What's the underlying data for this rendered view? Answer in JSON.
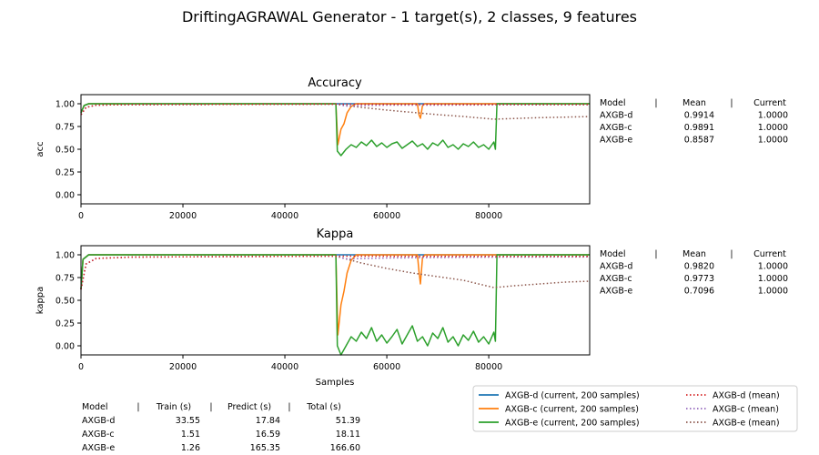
{
  "figure_title": "DriftingAGRAWAL Generator - 1 target(s), 2 classes, 9 features",
  "chart_data": [
    {
      "type": "line",
      "title": "Accuracy",
      "xlabel": "",
      "ylabel": "acc",
      "xlim": [
        0,
        99800
      ],
      "ylim": [
        -0.1,
        1.1
      ],
      "xticks": [
        "0",
        "20000",
        "40000",
        "60000",
        "80000"
      ],
      "yticks": [
        "0.00",
        "0.25",
        "0.50",
        "0.75",
        "1.00"
      ],
      "grid": false,
      "series": [
        {
          "name": "AXGB-d  (current, 200 samples)",
          "color": "#1f77b4",
          "style": "solid",
          "x": [
            0,
            600,
            1500,
            50000,
            99800
          ],
          "y": [
            0.9,
            0.98,
            1.0,
            1.0,
            1.0
          ]
        },
        {
          "name": "AXGB-c  (current, 200 samples)",
          "color": "#ff7f0e",
          "style": "solid",
          "x": [
            0,
            600,
            1500,
            50000,
            50400,
            51000,
            51600,
            52200,
            53000,
            54000,
            66000,
            66300,
            66600,
            67000,
            67500,
            99800
          ],
          "y": [
            0.9,
            0.98,
            1.0,
            1.0,
            0.55,
            0.72,
            0.78,
            0.9,
            0.97,
            1.0,
            1.0,
            0.88,
            0.84,
            0.98,
            1.0,
            1.0
          ]
        },
        {
          "name": "AXGB-e  (current, 200 samples)",
          "color": "#2ca02c",
          "style": "solid",
          "x": [
            0,
            600,
            1500,
            50000,
            50300,
            51000,
            52000,
            53000,
            54000,
            55000,
            56000,
            57000,
            58000,
            59000,
            60000,
            61000,
            62000,
            63000,
            64000,
            65000,
            66000,
            67000,
            68000,
            69000,
            70000,
            71000,
            72000,
            73000,
            74000,
            75000,
            76000,
            77000,
            78000,
            79000,
            80000,
            81000,
            81300,
            81600,
            99800
          ],
          "y": [
            0.9,
            0.98,
            1.0,
            1.0,
            0.48,
            0.43,
            0.5,
            0.55,
            0.52,
            0.58,
            0.54,
            0.6,
            0.53,
            0.57,
            0.52,
            0.56,
            0.58,
            0.51,
            0.55,
            0.59,
            0.53,
            0.56,
            0.5,
            0.57,
            0.54,
            0.6,
            0.52,
            0.55,
            0.5,
            0.56,
            0.53,
            0.58,
            0.52,
            0.55,
            0.5,
            0.58,
            0.5,
            1.0,
            1.0
          ]
        },
        {
          "name": "AXGB-d (mean)",
          "color": "#d62728",
          "style": "dotted",
          "x": [
            0,
            1000,
            3000,
            10000,
            50000,
            99800
          ],
          "y": [
            0.88,
            0.96,
            0.985,
            0.99,
            0.995,
            0.991
          ]
        },
        {
          "name": "AXGB-c (mean)",
          "color": "#9467bd",
          "style": "dotted",
          "x": [
            0,
            1000,
            3000,
            10000,
            50000,
            52000,
            60000,
            70000,
            80000,
            99800
          ],
          "y": [
            0.88,
            0.96,
            0.985,
            0.99,
            0.995,
            0.975,
            0.985,
            0.985,
            0.987,
            0.989
          ]
        },
        {
          "name": "AXGB-e (mean)",
          "color": "#8c564b",
          "style": "dotted",
          "x": [
            0,
            1000,
            3000,
            10000,
            50000,
            55000,
            60000,
            65000,
            70000,
            75000,
            81000,
            85000,
            90000,
            95000,
            99800
          ],
          "y": [
            0.88,
            0.96,
            0.985,
            0.99,
            0.995,
            0.96,
            0.93,
            0.905,
            0.88,
            0.86,
            0.83,
            0.838,
            0.847,
            0.853,
            0.859
          ]
        }
      ],
      "side_table": {
        "header": [
          "Model",
          "|",
          "Mean",
          "|",
          "Current"
        ],
        "rows": [
          [
            "AXGB-d",
            "0.9914",
            "1.0000"
          ],
          [
            "AXGB-c",
            "0.9891",
            "1.0000"
          ],
          [
            "AXGB-e",
            "0.8587",
            "1.0000"
          ]
        ]
      }
    },
    {
      "type": "line",
      "title": "Kappa",
      "xlabel": "Samples",
      "ylabel": "kappa",
      "xlim": [
        0,
        99800
      ],
      "ylim": [
        -0.1,
        1.1
      ],
      "xticks": [
        "0",
        "20000",
        "40000",
        "60000",
        "80000"
      ],
      "yticks": [
        "0.00",
        "0.25",
        "0.50",
        "0.75",
        "1.00"
      ],
      "grid": false,
      "series": [
        {
          "name": "AXGB-d  (current, 200 samples)",
          "color": "#1f77b4",
          "style": "solid",
          "x": [
            0,
            400,
            1500,
            50000,
            99800
          ],
          "y": [
            0.62,
            0.95,
            1.0,
            1.0,
            1.0
          ]
        },
        {
          "name": "AXGB-c  (current, 200 samples)",
          "color": "#ff7f0e",
          "style": "solid",
          "x": [
            0,
            400,
            1500,
            50000,
            50400,
            51000,
            51600,
            52200,
            53000,
            54000,
            66000,
            66300,
            66600,
            67000,
            67500,
            99800
          ],
          "y": [
            0.62,
            0.95,
            1.0,
            1.0,
            0.12,
            0.45,
            0.6,
            0.8,
            0.94,
            1.0,
            1.0,
            0.82,
            0.68,
            0.97,
            1.0,
            1.0
          ]
        },
        {
          "name": "AXGB-e  (current, 200 samples)",
          "color": "#2ca02c",
          "style": "solid",
          "x": [
            0,
            400,
            1500,
            50000,
            50300,
            51000,
            52000,
            53000,
            54000,
            55000,
            56000,
            57000,
            58000,
            59000,
            60000,
            61000,
            62000,
            63000,
            64000,
            65000,
            66000,
            67000,
            68000,
            69000,
            70000,
            71000,
            72000,
            73000,
            74000,
            75000,
            76000,
            77000,
            78000,
            79000,
            80000,
            81000,
            81300,
            81600,
            99800
          ],
          "y": [
            0.62,
            0.95,
            1.0,
            1.0,
            0.0,
            -0.1,
            0.0,
            0.1,
            0.05,
            0.15,
            0.08,
            0.2,
            0.05,
            0.12,
            0.03,
            0.1,
            0.18,
            0.02,
            0.12,
            0.22,
            0.05,
            0.1,
            0.0,
            0.14,
            0.08,
            0.2,
            0.04,
            0.1,
            0.0,
            0.12,
            0.06,
            0.16,
            0.04,
            0.1,
            0.02,
            0.15,
            0.05,
            1.0,
            1.0
          ]
        },
        {
          "name": "AXGB-d (mean)",
          "color": "#d62728",
          "style": "dotted",
          "x": [
            0,
            1000,
            3000,
            10000,
            50000,
            99800
          ],
          "y": [
            0.62,
            0.9,
            0.96,
            0.975,
            0.985,
            0.982
          ]
        },
        {
          "name": "AXGB-c (mean)",
          "color": "#9467bd",
          "style": "dotted",
          "x": [
            0,
            1000,
            3000,
            10000,
            50000,
            52000,
            60000,
            70000,
            80000,
            99800
          ],
          "y": [
            0.62,
            0.9,
            0.96,
            0.975,
            0.985,
            0.955,
            0.965,
            0.97,
            0.974,
            0.977
          ]
        },
        {
          "name": "AXGB-e (mean)",
          "color": "#8c564b",
          "style": "dotted",
          "x": [
            0,
            1000,
            3000,
            10000,
            50000,
            55000,
            60000,
            65000,
            70000,
            75000,
            81000,
            85000,
            90000,
            95000,
            99800
          ],
          "y": [
            0.62,
            0.9,
            0.96,
            0.975,
            0.985,
            0.91,
            0.85,
            0.8,
            0.76,
            0.72,
            0.64,
            0.66,
            0.68,
            0.7,
            0.71
          ]
        }
      ],
      "side_table": {
        "header": [
          "Model",
          "|",
          "Mean",
          "|",
          "Current"
        ],
        "rows": [
          [
            "AXGB-d",
            "0.9820",
            "1.0000"
          ],
          [
            "AXGB-c",
            "0.9773",
            "1.0000"
          ],
          [
            "AXGB-e",
            "0.7096",
            "1.0000"
          ]
        ]
      }
    }
  ],
  "time_table": {
    "header": [
      "Model",
      "|",
      "Train (s)",
      "|",
      "Predict (s)",
      "|",
      "Total (s)"
    ],
    "rows": [
      [
        "AXGB-d",
        "33.55",
        "17.84",
        "51.39"
      ],
      [
        "AXGB-c",
        "1.51",
        "16.59",
        "18.11"
      ],
      [
        "AXGB-e",
        "1.26",
        "165.35",
        "166.60"
      ]
    ]
  },
  "legend": {
    "placement": "bottom-right",
    "entries": [
      {
        "label": "AXGB-d  (current, 200 samples)",
        "color": "#1f77b4",
        "style": "solid"
      },
      {
        "label": "AXGB-c  (current, 200 samples)",
        "color": "#ff7f0e",
        "style": "solid"
      },
      {
        "label": "AXGB-e  (current, 200 samples)",
        "color": "#2ca02c",
        "style": "solid"
      },
      {
        "label": "AXGB-d (mean)",
        "color": "#d62728",
        "style": "dotted"
      },
      {
        "label": "AXGB-c (mean)",
        "color": "#9467bd",
        "style": "dotted"
      },
      {
        "label": "AXGB-e (mean)",
        "color": "#8c564b",
        "style": "dotted"
      }
    ]
  }
}
